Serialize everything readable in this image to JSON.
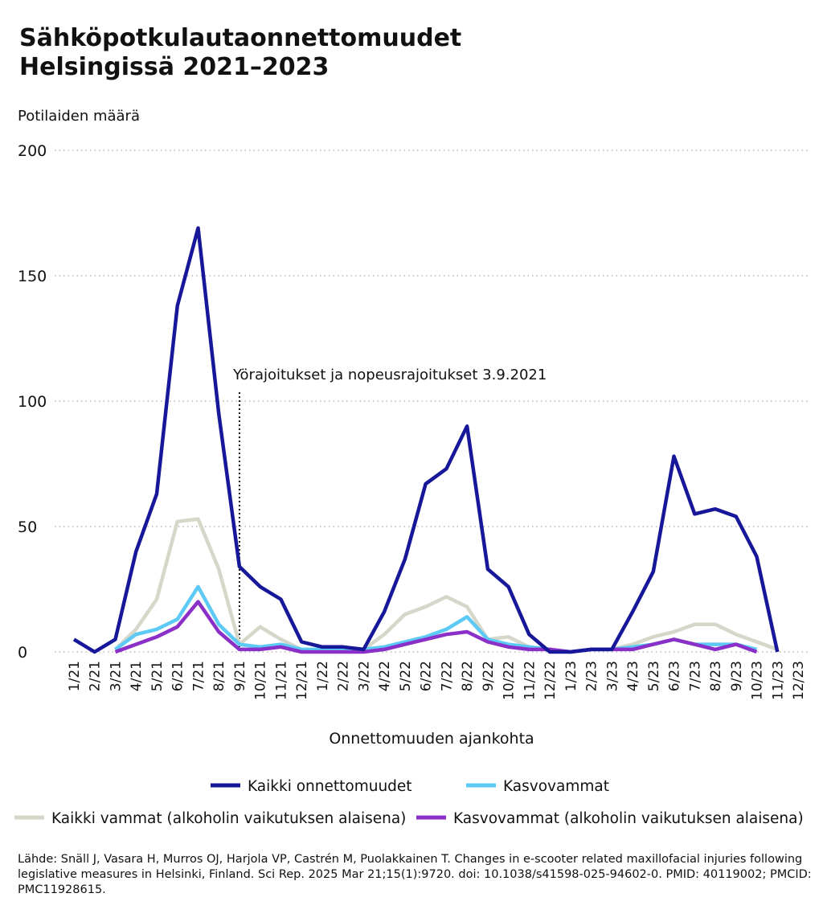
{
  "chart_data": {
    "type": "line",
    "title": [
      "Sähköpotkulautaonnettomuudet",
      "Helsingissä 2021–2023"
    ],
    "y_axis_label": "Potilaiden määrä",
    "x_axis_label": "Onnettomuuden ajankohta",
    "annotation": {
      "text": "Yörajoitukset ja nopeusrajoitukset 3.9.2021",
      "category": "9/21"
    },
    "source": "Lähde: Snäll J, Vasara H, Murros OJ, Harjola VP, Castrén M, Puolakkainen T. Changes in e-scooter related maxillofacial injuries following legislative measures in Helsinki, Finland. Sci Rep. 2025 Mar 21;15(1):9720. doi: 10.1038/s41598-025-94602-0. PMID: 40119002; PMCID: PMC11928615.",
    "categories": [
      "1/21",
      "2/21",
      "3/21",
      "4/21",
      "5/21",
      "6/21",
      "7/21",
      "8/21",
      "9/21",
      "10/21",
      "11/21",
      "12/21",
      "1/22",
      "2/22",
      "3/22",
      "4/22",
      "5/22",
      "6/22",
      "7/22",
      "8/22",
      "9/22",
      "10/22",
      "11/22",
      "12/22",
      "1/23",
      "2/23",
      "3/23",
      "4/23",
      "5/23",
      "6/23",
      "7/23",
      "8/23",
      "9/23",
      "10/23",
      "11/23",
      "12/23"
    ],
    "ylim": [
      0,
      200
    ],
    "yticks": [
      0,
      50,
      100,
      150,
      200
    ],
    "grid": true,
    "series": [
      {
        "name": "Kaikki vammat (alkoholin vaikutuksen alaisena)",
        "color": "#d5d7c9",
        "values": [
          null,
          null,
          1,
          9,
          21,
          52,
          53,
          33,
          3,
          10,
          5,
          1,
          0,
          1,
          1,
          7,
          15,
          18,
          22,
          18,
          5,
          6,
          2,
          1,
          0,
          1,
          1,
          3,
          6,
          8,
          11,
          11,
          7,
          4,
          1,
          null
        ]
      },
      {
        "name": "Kasvovammat",
        "color": "#5ccaf5",
        "values": [
          null,
          null,
          1,
          7,
          9,
          13,
          26,
          11,
          3,
          2,
          3,
          1,
          1,
          1,
          1,
          2,
          4,
          6,
          9,
          14,
          5,
          3,
          2,
          1,
          0,
          1,
          1,
          2,
          3,
          5,
          3,
          3,
          3,
          1,
          null,
          null
        ]
      },
      {
        "name": "Kasvovammat (alkoholin vaikutuksen alaisena)",
        "color": "#8a2fc7",
        "values": [
          null,
          null,
          0,
          3,
          6,
          10,
          20,
          8,
          1,
          1,
          2,
          0,
          0,
          0,
          0,
          1,
          3,
          5,
          7,
          8,
          4,
          2,
          1,
          1,
          0,
          1,
          1,
          1,
          3,
          5,
          3,
          1,
          3,
          0,
          null,
          null
        ]
      },
      {
        "name": "Kaikki onnettomuudet",
        "color": "#17179a",
        "values": [
          5,
          0,
          5,
          40,
          63,
          138,
          169,
          95,
          34,
          26,
          21,
          4,
          2,
          2,
          1,
          16,
          37,
          67,
          73,
          90,
          33,
          26,
          7,
          0,
          0,
          1,
          1,
          16,
          32,
          78,
          55,
          57,
          54,
          38,
          0,
          null
        ]
      }
    ],
    "legend_order": [
      3,
      1,
      0,
      2
    ]
  }
}
